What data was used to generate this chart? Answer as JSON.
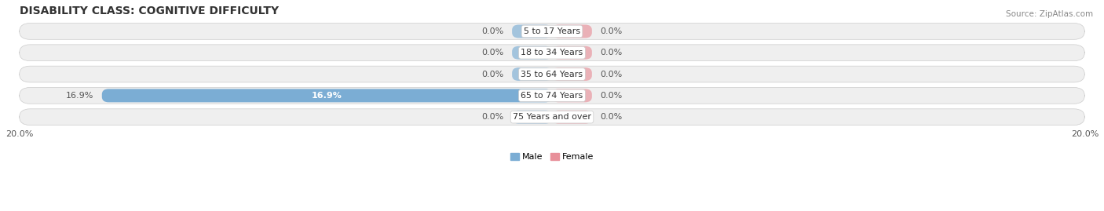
{
  "title": "DISABILITY CLASS: COGNITIVE DIFFICULTY",
  "source": "Source: ZipAtlas.com",
  "categories": [
    "5 to 17 Years",
    "18 to 34 Years",
    "35 to 64 Years",
    "65 to 74 Years",
    "75 Years and over"
  ],
  "male_values": [
    0.0,
    0.0,
    0.0,
    16.9,
    0.0
  ],
  "female_values": [
    0.0,
    0.0,
    0.0,
    0.0,
    0.0
  ],
  "male_labels": [
    "0.0%",
    "0.0%",
    "0.0%",
    "16.9%",
    "0.0%"
  ],
  "female_labels": [
    "0.0%",
    "0.0%",
    "0.0%",
    "0.0%",
    "0.0%"
  ],
  "male_color": "#7badd4",
  "female_color": "#e8909a",
  "row_bg_color": "#e8e8e8",
  "x_max": 20.0,
  "x_min": -20.0,
  "title_fontsize": 10,
  "label_fontsize": 8,
  "tick_fontsize": 8,
  "category_fontsize": 8,
  "bar_height": 0.62,
  "background_color": "#ffffff"
}
